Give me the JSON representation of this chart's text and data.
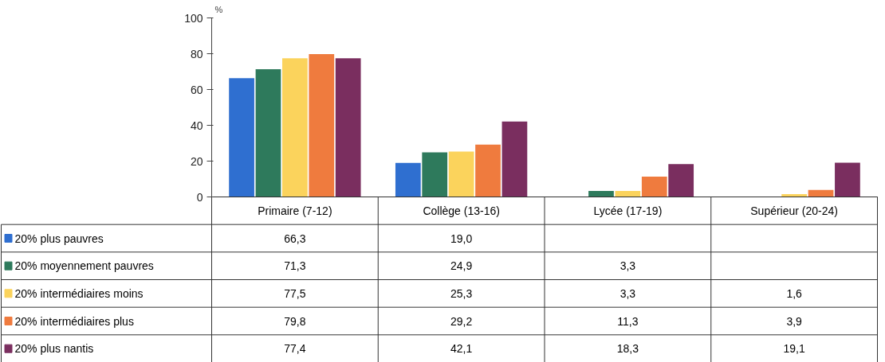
{
  "chart_data": {
    "type": "bar",
    "ylabel": "%",
    "categories": [
      "Primaire (7-12)",
      "Collège (13-16)",
      "Lycée (17-19)",
      "Supérieur (20-24)"
    ],
    "ylim": [
      0,
      100
    ],
    "yticks": [
      0,
      20,
      40,
      60,
      80,
      100
    ],
    "grid": false,
    "legend": "bottom",
    "tick_labels": "y",
    "series": [
      {
        "name": "20% plus pauvres",
        "color": "#2f6fd0",
        "values": [
          66.3,
          19.0,
          null,
          null
        ],
        "value_labels": [
          "66,3",
          "19,0",
          null,
          null
        ]
      },
      {
        "name": "20% moyennement pauvres",
        "color": "#2e7a5c",
        "values": [
          71.3,
          24.9,
          3.3,
          null
        ],
        "value_labels": [
          "71,3",
          "24,9",
          "3,3",
          null
        ]
      },
      {
        "name": "20% intermédiaires moins",
        "color": "#fbd35c",
        "values": [
          77.5,
          25.3,
          3.3,
          1.6
        ],
        "value_labels": [
          "77,5",
          "25,3",
          "3,3",
          "1,6"
        ]
      },
      {
        "name": "20% intermédiaires plus",
        "color": "#ef7b3e",
        "values": [
          79.8,
          29.2,
          11.3,
          3.9
        ],
        "value_labels": [
          "79,8",
          "29,2",
          "11,3",
          "3,9"
        ]
      },
      {
        "name": "20% plus nantis",
        "color": "#7a2e5f",
        "values": [
          77.4,
          42.1,
          18.3,
          19.1
        ],
        "value_labels": [
          "77,4",
          "42,1",
          "18,3",
          "19,1"
        ]
      }
    ]
  }
}
